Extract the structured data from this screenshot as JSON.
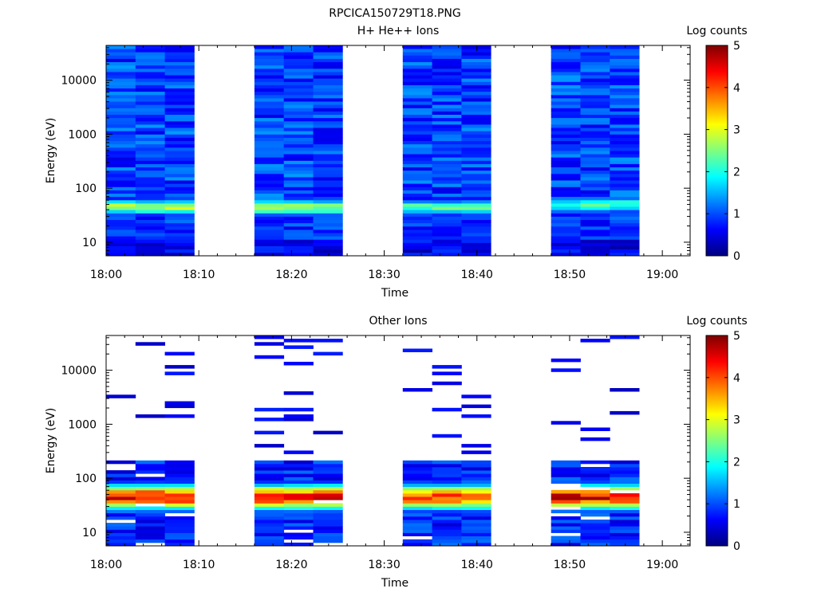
{
  "figure_title": "RPCICA150729T18.PNG",
  "colors": {
    "colormap": [
      "#00007f",
      "#0000ff",
      "#007fff",
      "#00ffff",
      "#7fff7f",
      "#ffff00",
      "#ff7f00",
      "#ff0000",
      "#7f0000"
    ]
  },
  "chart_data": [
    {
      "type": "heatmap",
      "title": "H+ He++ Ions",
      "xlabel": "Time",
      "ylabel": "Energy (eV)",
      "yscale": "log",
      "ylim": [
        5.6,
        44000
      ],
      "xlim": [
        "18:00",
        "19:03"
      ],
      "x_ticks": [
        "18:00",
        "18:10",
        "18:20",
        "18:30",
        "18:40",
        "18:50",
        "19:00"
      ],
      "y_ticks": [
        "10",
        "100",
        "1000",
        "10000"
      ],
      "colorbar": {
        "label": "Log counts",
        "range": [
          0,
          5
        ],
        "ticks": [
          "0",
          "1",
          "2",
          "3",
          "4",
          "5"
        ]
      },
      "scans": [
        {
          "start": "18:00",
          "end": "18:09.5",
          "columns": 3,
          "peak_energy_eV": 45,
          "peak_log_counts": 2.8
        },
        {
          "start": "18:16",
          "end": "18:25.5",
          "columns": 3,
          "peak_energy_eV": 45,
          "peak_log_counts": 2.9
        },
        {
          "start": "18:32",
          "end": "18:41.5",
          "columns": 3,
          "peak_energy_eV": 45,
          "peak_log_counts": 2.4
        },
        {
          "start": "18:48",
          "end": "18:57.5",
          "columns": 3,
          "peak_energy_eV": 50,
          "peak_log_counts": 2.3
        }
      ]
    },
    {
      "type": "heatmap",
      "title": "Other Ions",
      "xlabel": "Time",
      "ylabel": "Energy (eV)",
      "yscale": "log",
      "ylim": [
        5.6,
        44000
      ],
      "xlim": [
        "18:00",
        "19:03"
      ],
      "x_ticks": [
        "18:00",
        "18:10",
        "18:20",
        "18:30",
        "18:40",
        "18:50",
        "19:00"
      ],
      "y_ticks": [
        "10",
        "100",
        "1000",
        "10000"
      ],
      "colorbar": {
        "label": "Log counts",
        "range": [
          0,
          5
        ],
        "ticks": [
          "0",
          "1",
          "2",
          "3",
          "4",
          "5"
        ]
      },
      "scans": [
        {
          "start": "18:00",
          "end": "18:09.5",
          "columns": 3,
          "peak_energy_eV": 45,
          "peak_log_counts": 4.7
        },
        {
          "start": "18:16",
          "end": "18:25.5",
          "columns": 3,
          "peak_energy_eV": 45,
          "peak_log_counts": 4.6
        },
        {
          "start": "18:32",
          "end": "18:41.5",
          "columns": 3,
          "peak_energy_eV": 45,
          "peak_log_counts": 4.2
        },
        {
          "start": "18:48",
          "end": "18:57.5",
          "columns": 3,
          "peak_energy_eV": 45,
          "peak_log_counts": 4.7
        }
      ]
    }
  ]
}
